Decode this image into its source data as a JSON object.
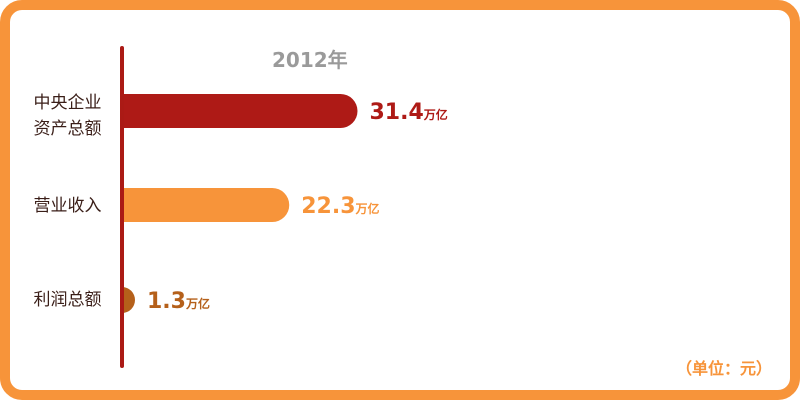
{
  "chart_data": {
    "type": "bar",
    "orientation": "horizontal",
    "title": "2012年",
    "unit_note": "（单位：元）",
    "value_suffix": "万亿",
    "categories": [
      "中央企业资产总额",
      "营业收入",
      "利润总额"
    ],
    "category_lines": [
      [
        "中央企业",
        "资产总额"
      ],
      [
        "营业收入"
      ],
      [
        "利润总额"
      ]
    ],
    "values": [
      31.4,
      22.3,
      1.3
    ],
    "colors": [
      "#ae1a16",
      "#f7943a",
      "#b5601a"
    ],
    "axis_color": "#ab1a15",
    "frame_color": "#f7943a",
    "grid": false
  }
}
